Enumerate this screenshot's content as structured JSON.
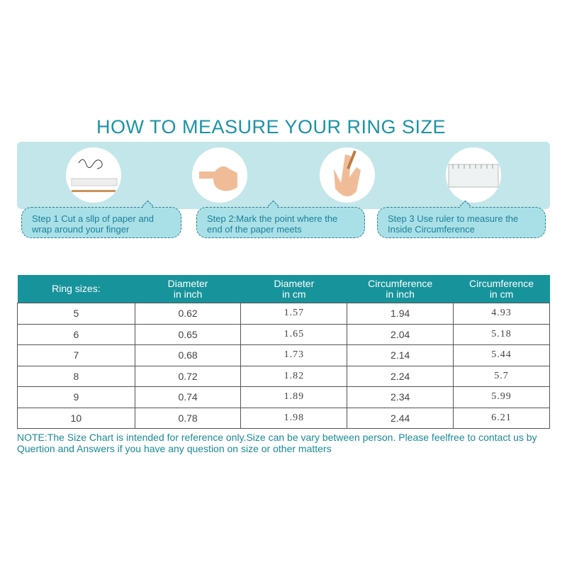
{
  "title": "HOW TO MEASURE YOUR RING SIZE",
  "steps": [
    {
      "text": "Step 1 Cut a sllp of paper and wrap around your finger",
      "icon": "paper-pencil-icon"
    },
    {
      "text": "Step 2:Mark the point where the end of the paper meets",
      "icon": "hand-finger-icon"
    },
    {
      "text": "Step 3 Use ruler to measure the Inside Circumference",
      "icon": "ruler-icon"
    }
  ],
  "table": {
    "headers": [
      [
        "Ring sizes:",
        ""
      ],
      [
        "Diameter",
        "in inch"
      ],
      [
        "Diameter",
        "in cm"
      ],
      [
        "Circumference",
        "in inch"
      ],
      [
        "Circumference",
        "in cm"
      ]
    ],
    "rows": [
      [
        "5",
        "0.62",
        "1.57",
        "1.94",
        "4.93"
      ],
      [
        "6",
        "0.65",
        "1.65",
        "2.04",
        "5.18"
      ],
      [
        "7",
        "0.68",
        "1.73",
        "2.14",
        "5.44"
      ],
      [
        "8",
        "0.72",
        "1.82",
        "2.24",
        "5.7"
      ],
      [
        "9",
        "0.74",
        "1.89",
        "2.34",
        "5.99"
      ],
      [
        "10",
        "0.78",
        "1.98",
        "2.44",
        "6.21"
      ]
    ]
  },
  "note": "NOTE:The Size Chart is intended for reference only.Size can be vary between person. Please feelfree to contact us by Quertion and Answers if you have any question on size or other matters",
  "colors": {
    "accent": "#17939b",
    "panel": "#c3e6ea",
    "bubble": "#a9e0e8"
  }
}
